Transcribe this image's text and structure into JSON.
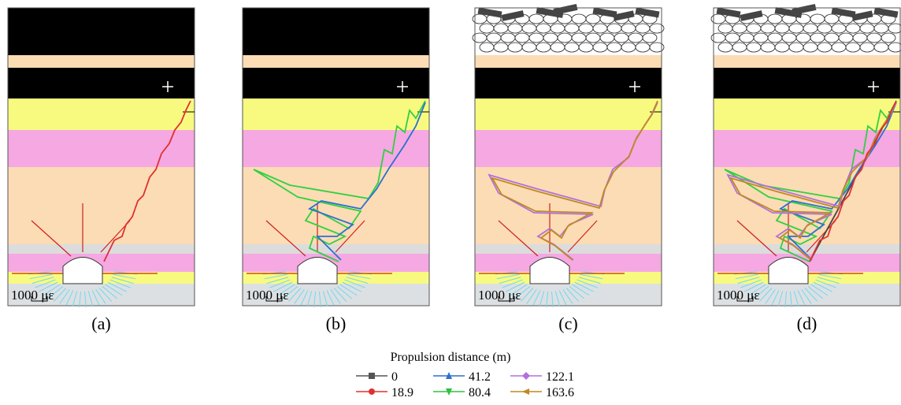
{
  "panels": [
    {
      "label": "(a)",
      "scale": "1000 με"
    },
    {
      "label": "(b)",
      "scale": "1000 με"
    },
    {
      "label": "(c)",
      "scale": "1000 με"
    },
    {
      "label": "(d)",
      "scale": "1000 με"
    }
  ],
  "legend": {
    "title": "Propulsion distance (m)",
    "entries": [
      {
        "label": "0",
        "color": "#555555"
      },
      {
        "label": "41.2",
        "color": "#2f6fd0"
      },
      {
        "label": "122.1",
        "color": "#b070e0"
      },
      {
        "label": "18.9",
        "color": "#e03030"
      },
      {
        "label": "80.4",
        "color": "#30c040"
      },
      {
        "label": "163.6",
        "color": "#c08a20"
      }
    ]
  }
}
